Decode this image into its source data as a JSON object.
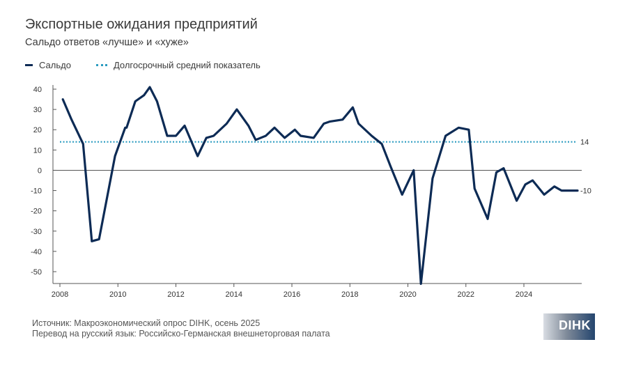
{
  "title": "Экспортные ожидания предприятий",
  "subtitle": "Сальдо ответов «лучше» и «хуже»",
  "legend": {
    "series_label": "Сальдо",
    "average_label": "Долгосрочный средний показатель"
  },
  "footer": {
    "source": "Источник: Макроэкономический опрос DIHK, осень 2025",
    "translation": "Перевод на русский язык: Российско-Германская внешнеторговая палата"
  },
  "logo_text": "DIHK",
  "colors": {
    "series": "#0d2b55",
    "average": "#2a9bc0",
    "axis": "#555555",
    "grid": "#cccccc"
  },
  "chart_data": {
    "type": "line",
    "title": "Экспортные ожидания предприятий",
    "xlabel": "",
    "ylabel": "",
    "xlim": [
      2008,
      2025.9
    ],
    "ylim": [
      -56,
      41
    ],
    "x_ticks": [
      2008,
      2010,
      2012,
      2014,
      2016,
      2018,
      2020,
      2022,
      2024
    ],
    "x_tick_labels": [
      "2008",
      "2010",
      "2012",
      "2014",
      "2016",
      "2018",
      "2020",
      "2022",
      "2024"
    ],
    "y_ticks": [
      40,
      30,
      20,
      10,
      0,
      -10,
      -20,
      -30,
      -40,
      -50
    ],
    "y_tick_labels": [
      "40",
      "30",
      "20",
      "10",
      "0",
      "-10",
      "-20",
      "-30",
      "-40",
      "-50"
    ],
    "grid": false,
    "series": [
      {
        "name": "Сальдо",
        "x": [
          2008.1,
          2008.4,
          2008.8,
          2009.1,
          2009.35,
          2009.9,
          2010.25,
          2010.3,
          2010.6,
          2010.9,
          2011.1,
          2011.35,
          2011.7,
          2012.0,
          2012.3,
          2012.75,
          2013.05,
          2013.3,
          2013.75,
          2014.1,
          2014.5,
          2014.75,
          2015.1,
          2015.4,
          2015.75,
          2016.1,
          2016.3,
          2016.75,
          2017.1,
          2017.3,
          2017.75,
          2018.1,
          2018.3,
          2018.75,
          2019.1,
          2019.4,
          2019.8,
          2020.2,
          2020.45,
          2020.85,
          2021.3,
          2021.75,
          2022.1,
          2022.3,
          2022.75,
          2023.05,
          2023.3,
          2023.75,
          2024.05,
          2024.3,
          2024.7,
          2025.05,
          2025.3,
          2025.85
        ],
        "y": [
          35,
          25,
          13,
          -35,
          -34,
          7,
          21,
          21,
          34,
          37,
          41,
          34,
          17,
          17,
          22,
          7,
          16,
          17,
          23,
          30,
          22,
          15,
          17,
          21,
          16,
          20,
          17,
          16,
          23,
          24,
          25,
          31,
          23,
          17,
          13,
          2,
          -12,
          0,
          -56,
          -4,
          17,
          21,
          20,
          -9,
          -24,
          -1,
          1,
          -15,
          -7,
          -5,
          -12,
          -8,
          -10,
          -10
        ]
      }
    ],
    "reference_line": {
      "name": "Долгосрочный средний показатель",
      "value": 14,
      "label": "14"
    },
    "end_label": "-10"
  }
}
